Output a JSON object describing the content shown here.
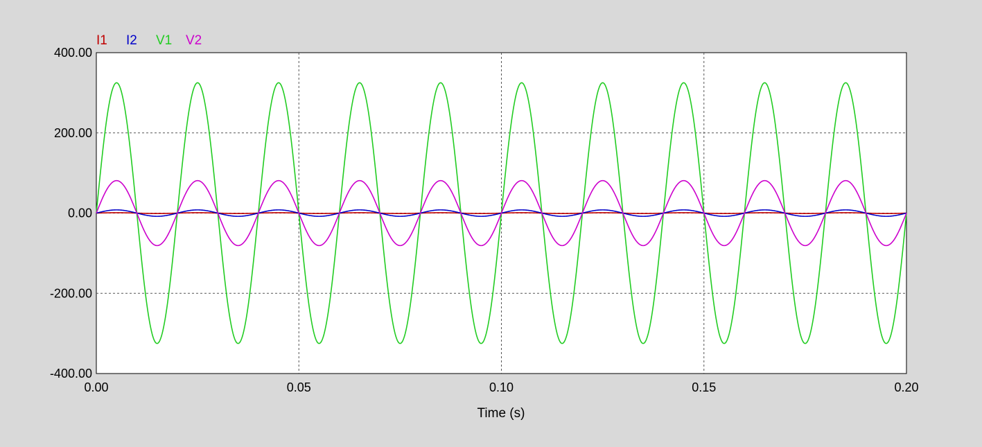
{
  "chart_data": {
    "type": "line",
    "xlabel": "Time (s)",
    "ylabel": "",
    "xlim": [
      0,
      0.2
    ],
    "ylim": [
      -400,
      400
    ],
    "x_ticks": [
      0,
      0.05,
      0.1,
      0.15,
      0.2
    ],
    "x_tick_labels": [
      "0.00",
      "0.05",
      "0.10",
      "0.15",
      "0.20"
    ],
    "y_ticks": [
      400,
      200,
      0,
      -200,
      -400
    ],
    "y_tick_labels": [
      "400.00",
      "200.00",
      "0.00",
      "-200.00",
      "-400.00"
    ],
    "grid": true,
    "legend_position": "top-left",
    "background": "#d9d9d9",
    "plot_background": "#ffffff",
    "series": [
      {
        "name": "I1",
        "color": "#c00000",
        "waveform": "sine",
        "frequency_hz": 50,
        "amplitude": 1,
        "phase_deg": 0
      },
      {
        "name": "I2",
        "color": "#0000c8",
        "waveform": "sine",
        "frequency_hz": 50,
        "amplitude": 8,
        "phase_deg": 0
      },
      {
        "name": "V1",
        "color": "#22cc22",
        "waveform": "sine",
        "frequency_hz": 50,
        "amplitude": 325,
        "phase_deg": 0
      },
      {
        "name": "V2",
        "color": "#cc00cc",
        "waveform": "sine",
        "frequency_hz": 50,
        "amplitude": 81,
        "phase_deg": 0
      }
    ]
  }
}
